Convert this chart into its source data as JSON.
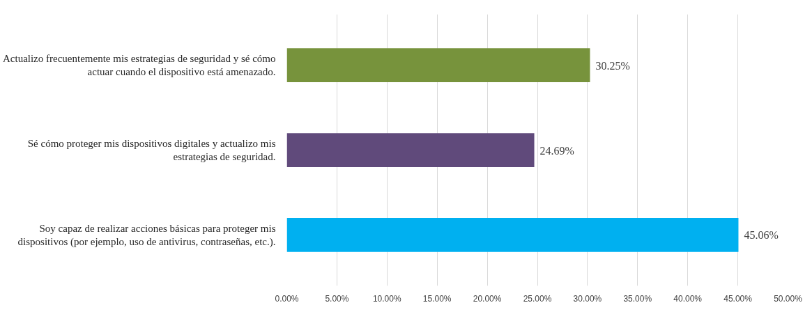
{
  "chart_data": {
    "type": "bar",
    "orientation": "horizontal",
    "categories": [
      "Actualizo frecuentemente mis estrategias de seguridad y sé cómo actuar cuando el dispositivo está amenazado.",
      "Sé cómo proteger mis dispositivos digitales y actualizo mis estrategias de seguridad.",
      "Soy capaz de realizar acciones básicas para proteger mis dispositivos (por ejemplo, uso de antivirus, contraseñas, etc.)."
    ],
    "values": [
      30.25,
      24.69,
      45.06
    ],
    "colors": [
      "#77933c",
      "#604a7b",
      "#00b0f0"
    ],
    "value_labels": [
      "30.25%",
      "24.69%",
      "45.06%"
    ],
    "xlim": [
      0,
      50
    ],
    "xticks": [
      {
        "value": 0,
        "label": "0.00%"
      },
      {
        "value": 5,
        "label": "5.00%"
      },
      {
        "value": 10,
        "label": "10.00%"
      },
      {
        "value": 15,
        "label": "15.00%"
      },
      {
        "value": 20,
        "label": "20.00%"
      },
      {
        "value": 25,
        "label": "25.00%"
      },
      {
        "value": 30,
        "label": "30.00%"
      },
      {
        "value": 35,
        "label": "35.00%"
      },
      {
        "value": 40,
        "label": "40.00%"
      },
      {
        "value": 45,
        "label": "45.00%"
      },
      {
        "value": 50,
        "label": "50.00%"
      }
    ],
    "grid": "x"
  }
}
